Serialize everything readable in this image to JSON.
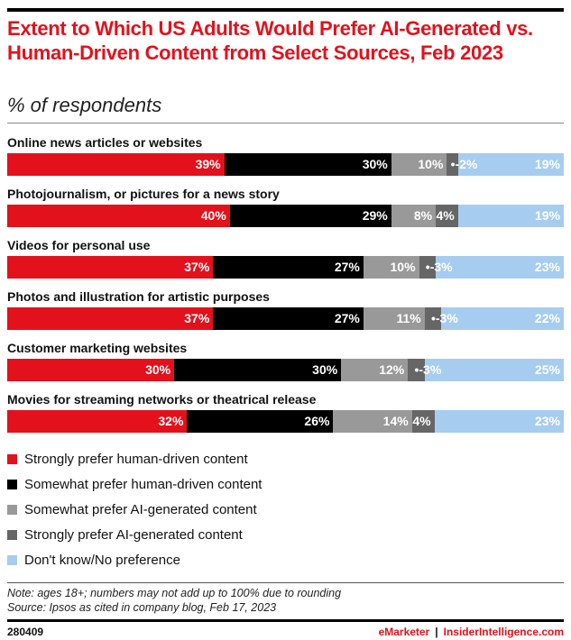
{
  "chart_data": {
    "type": "bar",
    "stacked": true,
    "orientation": "horizontal",
    "title": "Extent to Which US Adults Would Prefer AI-Generated vs. Human-Driven Content from Select Sources, Feb 2023",
    "subtitle": "% of respondents",
    "categories": [
      "Online news articles or websites",
      "Photojournalism, or pictures for a news story",
      "Videos for personal use",
      "Photos and illustration for artistic purposes",
      "Customer marketing websites",
      "Movies for streaming networks or theatrical release"
    ],
    "series": [
      {
        "name": "Strongly prefer human-driven content",
        "color": "#e3111b",
        "values": [
          39,
          40,
          37,
          37,
          30,
          32
        ]
      },
      {
        "name": "Somewhat prefer human-driven content",
        "color": "#000000",
        "values": [
          30,
          29,
          27,
          27,
          30,
          26
        ]
      },
      {
        "name": "Somewhat prefer AI-generated content",
        "color": "#999999",
        "values": [
          10,
          8,
          10,
          11,
          12,
          14
        ]
      },
      {
        "name": "Strongly prefer AI-generated content",
        "color": "#666666",
        "values": [
          2,
          4,
          3,
          3,
          3,
          4
        ]
      },
      {
        "name": "Don't know/No preference",
        "color": "#a6cdef",
        "values": [
          19,
          19,
          23,
          22,
          25,
          23
        ]
      }
    ],
    "unit": "%",
    "legend": "bottom-left"
  },
  "notes": {
    "note": "Note: ages 18+; numbers may not add up to 100% due to rounding",
    "source": "Source: Ipsos as cited in company blog, Feb 17, 2023"
  },
  "footer": {
    "id": "280409",
    "brand1": "eMarketer",
    "sep": "|",
    "brand2": "InsiderIntelligence.com"
  }
}
